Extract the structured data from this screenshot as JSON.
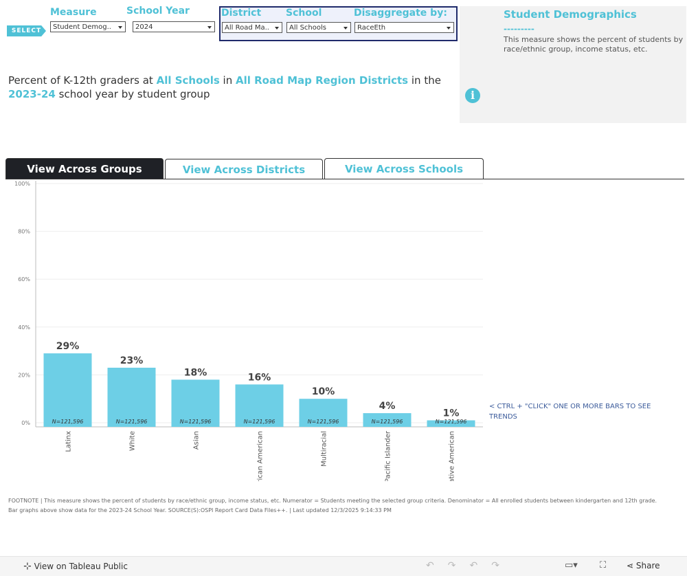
{
  "controls": {
    "select_badge": "SELECT",
    "measure": {
      "label": "Measure",
      "value": "Student Demog.."
    },
    "school_year": {
      "label": "School Year",
      "value": "2024"
    },
    "district": {
      "label": "District",
      "value": "All Road Ma.."
    },
    "school": {
      "label": "School",
      "value": "All Schools"
    },
    "disaggregate": {
      "label": "Disaggregate by:",
      "value": "RaceEth"
    }
  },
  "info_panel": {
    "title": "Student Demographics",
    "divider": "---------",
    "text": "This measure shows the percent of students by race/ethnic group, income status, etc."
  },
  "headline": {
    "part1": "Percent of K-12th graders at",
    "school": "All Schools",
    "part2": "in",
    "district": "All Road Map Region Districts",
    "part3": "in the",
    "year": "2023-24",
    "part4": "school year by student group"
  },
  "tabs": [
    "View Across Groups",
    "View Across Districts",
    "View Across Schools"
  ],
  "chart_data": {
    "type": "bar",
    "categories": [
      "Latinx",
      "White",
      "Asian",
      "Black/ African American",
      "Multiracial",
      "Pacific Islander",
      "Native American"
    ],
    "values": [
      29,
      23,
      18,
      16,
      10,
      4,
      1
    ],
    "value_labels": [
      "29%",
      "23%",
      "18%",
      "16%",
      "10%",
      "4%",
      "1%"
    ],
    "n_labels": [
      "N=121,596",
      "N=121,596",
      "N=121,596",
      "N=121,596",
      "N=121,596",
      "N=121,596",
      "N=121,596"
    ],
    "color": "#6dcfe6",
    "ylim": [
      0,
      100
    ],
    "yticks": [
      {
        "value": 0,
        "label": "0%"
      },
      {
        "value": 20,
        "label": "20%"
      },
      {
        "value": 40,
        "label": "40%"
      },
      {
        "value": 60,
        "label": "60%"
      },
      {
        "value": 80,
        "label": "80%"
      },
      {
        "value": 100,
        "label": "100%"
      }
    ],
    "grid": true,
    "annotation": "< CTRL + \"CLICK\" ONE OR MORE BARS TO SEE TRENDS"
  },
  "footnote": [
    "FOOTNOTE | This measure shows the percent of students by race/ethnic group, income status, etc. Numerator = Students meeting the selected group criteria. Denominator =  All enrolled students between kindergarten and 12th grade.",
    "Bar graphs above show data for the  2023-24 School Year. SOURCE(S):OSPI Report Card Data Files++. | Last updated 12/3/2025 9:14:33 PM"
  ],
  "toolbar": {
    "view_link": "View on Tableau Public",
    "share": "Share"
  }
}
